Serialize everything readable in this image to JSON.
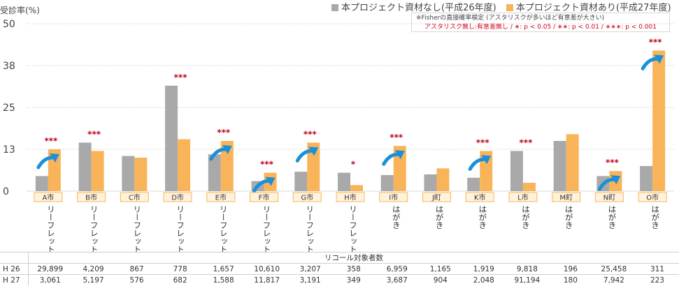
{
  "chart_data": {
    "type": "bar",
    "ylabel": "受診率(%)",
    "ylim": [
      0,
      50
    ],
    "yticks": [
      "0",
      "13",
      "25",
      "38",
      "50"
    ],
    "ytick_values": [
      0,
      12.5,
      25,
      37.5,
      50
    ],
    "categories": [
      "A市",
      "B市",
      "C市",
      "D市",
      "E市",
      "F市",
      "G市",
      "H市",
      "I市",
      "J町",
      "K市",
      "L市",
      "M町",
      "N町",
      "O市"
    ],
    "materials": [
      "リーフレット",
      "リーフレット",
      "リーフレット",
      "リーフレット",
      "リーフレット",
      "リーフレット",
      "リーフレット",
      "リーフレット",
      "はがき",
      "はがき",
      "はがき",
      "はがき",
      "はがき",
      "はがき",
      "はがき"
    ],
    "series": [
      {
        "name": "本プロジェクト資材なし(平成26年度)",
        "color": "#a9a9a9",
        "values": [
          4.5,
          14.5,
          10.5,
          31.5,
          11,
          3,
          5.8,
          5.5,
          4.8,
          5,
          4,
          12,
          15,
          4.5,
          7.5
        ]
      },
      {
        "name": "本プロジェクト資材あり(平成27年度)",
        "color": "#f9b45a",
        "values": [
          12.5,
          12,
          10,
          15.5,
          15,
          5.5,
          14.5,
          1.8,
          13.5,
          6.8,
          12,
          2.5,
          17,
          6,
          42
        ]
      }
    ],
    "significance": [
      "***",
      "***",
      "",
      "***",
      "***",
      "***",
      "***",
      "*",
      "***",
      "",
      "***",
      "***",
      "",
      "***",
      "***"
    ],
    "improved": [
      true,
      false,
      false,
      false,
      true,
      true,
      true,
      false,
      true,
      false,
      true,
      false,
      false,
      true,
      true
    ],
    "note_line1": "※Fisherの直接確率検定 (アスタリスクが多いほど有意差が大きい)",
    "note_line2": "アスタリスク無し:有意差無し / ∗: p < 0.05 / ∗∗: p < 0.01 / ∗∗∗: p < 0.001",
    "colors": {
      "significance": "#c0001a",
      "arrow": "#1a90d8",
      "label_box": "#fff3dd",
      "label_border": "#f9b45a"
    }
  },
  "recall_table": {
    "caption": "リコール対象者数",
    "rows": [
      {
        "label": "H 26",
        "values": [
          "29,899",
          "4,209",
          "867",
          "778",
          "1,657",
          "10,610",
          "3,207",
          "358",
          "6,959",
          "1,165",
          "1,919",
          "9,818",
          "196",
          "25,458",
          "311"
        ]
      },
      {
        "label": "H 27",
        "values": [
          "3,061",
          "5,197",
          "576",
          "682",
          "1,588",
          "11,817",
          "3,191",
          "349",
          "3,687",
          "904",
          "2,048",
          "91,194",
          "180",
          "7,942",
          "223"
        ]
      }
    ]
  }
}
